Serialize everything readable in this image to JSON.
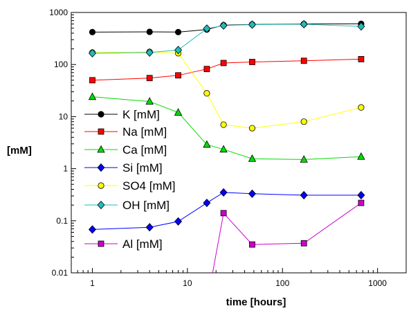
{
  "chart_data": {
    "type": "line",
    "xlabel": "time [hours]",
    "ylabel": "[mM]",
    "x_scale": "log",
    "y_scale": "log",
    "xlim": [
      0.6,
      2000
    ],
    "ylim": [
      0.01,
      1000
    ],
    "x_ticks": [
      1,
      10,
      100,
      1000
    ],
    "x_tick_labels": [
      "1",
      "10",
      "100",
      "1000"
    ],
    "y_ticks": [
      0.01,
      0.1,
      1,
      10,
      100,
      1000
    ],
    "y_tick_labels": [
      "0.01",
      "0.1",
      "1",
      "10",
      "100",
      "1000"
    ],
    "grid": false,
    "legend": "left",
    "series": [
      {
        "name": "K [mM]",
        "color": "#000000",
        "marker": "circle",
        "x": [
          1,
          4,
          8,
          16,
          24,
          48,
          168,
          672
        ],
        "y": [
          420,
          425,
          420,
          470,
          570,
          590,
          600,
          605
        ]
      },
      {
        "name": "Na [mM]",
        "color": "#ff0000",
        "marker": "square",
        "x": [
          1,
          4,
          8,
          16,
          24,
          48,
          168,
          672
        ],
        "y": [
          50,
          55,
          62,
          82,
          107,
          112,
          118,
          127
        ]
      },
      {
        "name": "Ca [mM]",
        "color": "#00dd00",
        "marker": "triangle",
        "x": [
          1,
          4,
          8,
          16,
          24,
          48,
          168,
          672
        ],
        "y": [
          24,
          19.5,
          12,
          2.9,
          2.35,
          1.55,
          1.5,
          1.7
        ]
      },
      {
        "name": "Si [mM]",
        "color": "#0000ff",
        "marker": "diamond",
        "x": [
          1,
          4,
          8,
          16,
          24,
          48,
          168,
          672
        ],
        "y": [
          0.068,
          0.075,
          0.097,
          0.22,
          0.35,
          0.33,
          0.31,
          0.31
        ]
      },
      {
        "name": "SO4 [mM]",
        "color": "#ffff00",
        "marker": "circle",
        "x": [
          1,
          4,
          8,
          16,
          24,
          48,
          168,
          672
        ],
        "y": [
          170,
          175,
          165,
          28,
          7,
          6,
          8,
          15
        ]
      },
      {
        "name": "OH [mM]",
        "color": "#22bbbb",
        "marker": "diamond",
        "x": [
          1,
          4,
          8,
          16,
          24,
          48,
          168,
          672
        ],
        "y": [
          165,
          170,
          190,
          490,
          560,
          585,
          595,
          540
        ]
      },
      {
        "name": "Al [mM]",
        "color": "#cc00cc",
        "marker": "square",
        "x": [
          18,
          24,
          48,
          168,
          672
        ],
        "y": [
          0.008,
          0.14,
          0.035,
          0.037,
          0.22
        ],
        "marker_from": 1
      }
    ]
  }
}
